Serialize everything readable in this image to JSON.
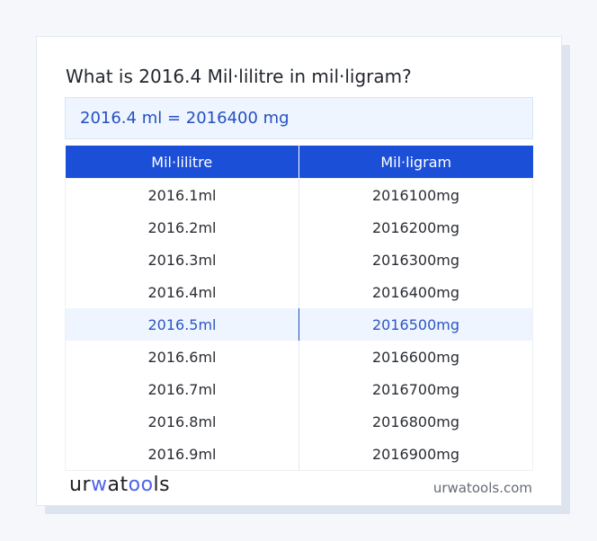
{
  "title": "What is 2016.4 Mil·lilitre in mil·ligram?",
  "result": "2016.4 ml = 2016400 mg",
  "table": {
    "headers": [
      "Mil·lilitre",
      "Mil·ligram"
    ],
    "rows": [
      [
        "2016.1ml",
        "2016100mg"
      ],
      [
        "2016.2ml",
        "2016200mg"
      ],
      [
        "2016.3ml",
        "2016300mg"
      ],
      [
        "2016.4ml",
        "2016400mg"
      ],
      [
        "2016.5ml",
        "2016500mg"
      ],
      [
        "2016.6ml",
        "2016600mg"
      ],
      [
        "2016.7ml",
        "2016700mg"
      ],
      [
        "2016.8ml",
        "2016800mg"
      ],
      [
        "2016.9ml",
        "2016900mg"
      ]
    ],
    "highlighted_row": 4
  },
  "footer": {
    "logo": "urwatools",
    "site": "urwatools.com"
  },
  "colors": {
    "accent": "#1c4fd8",
    "highlight_bg": "#eef5fe"
  }
}
